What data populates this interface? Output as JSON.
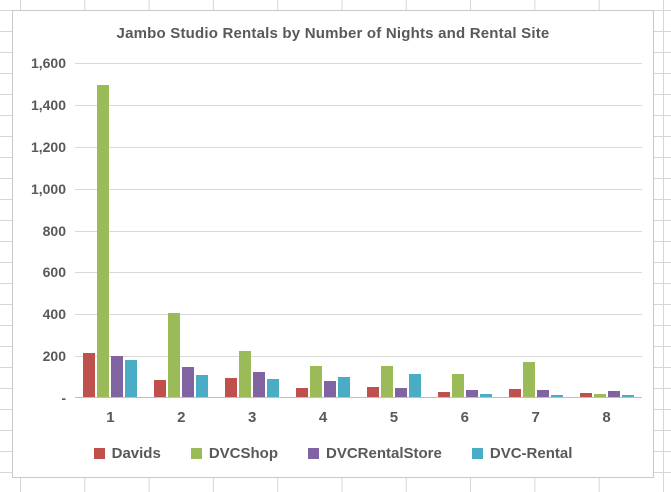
{
  "chart_data": {
    "type": "bar",
    "title": "Jambo Studio Rentals by Number of Nights and Rental Site",
    "xlabel": "",
    "ylabel": "",
    "categories": [
      "1",
      "2",
      "3",
      "4",
      "5",
      "6",
      "7",
      "8"
    ],
    "series": [
      {
        "name": "Davids",
        "color": "#C0504D",
        "values": [
          210,
          80,
          90,
          45,
          50,
          25,
          40,
          20
        ]
      },
      {
        "name": "DVCShop",
        "color": "#9BBB59",
        "values": [
          1490,
          400,
          220,
          150,
          150,
          110,
          165,
          15
        ]
      },
      {
        "name": "DVCRentalStore",
        "color": "#8064A2",
        "values": [
          195,
          145,
          120,
          75,
          45,
          35,
          35,
          30
        ]
      },
      {
        "name": "DVC-Rental",
        "color": "#4BACC6",
        "values": [
          175,
          105,
          85,
          95,
          110,
          15,
          10,
          10
        ]
      }
    ],
    "ylim": [
      0,
      1600
    ],
    "ytick_interval": 200,
    "ytick_labels_top_to_bottom": [
      "1,600",
      "1,400",
      "1,200",
      "1,000",
      "800",
      "600",
      "400",
      "200",
      "-"
    ],
    "grid": true,
    "legend_position": "bottom"
  },
  "colors": {
    "text": "#595959",
    "plot_gridline": "#D9D9D9",
    "axis_line": "#BFBFBF",
    "chart_border": "#C9C9C9",
    "sheet_gridline": "#D6D6D6",
    "chart_background": "#FFFFFF"
  }
}
